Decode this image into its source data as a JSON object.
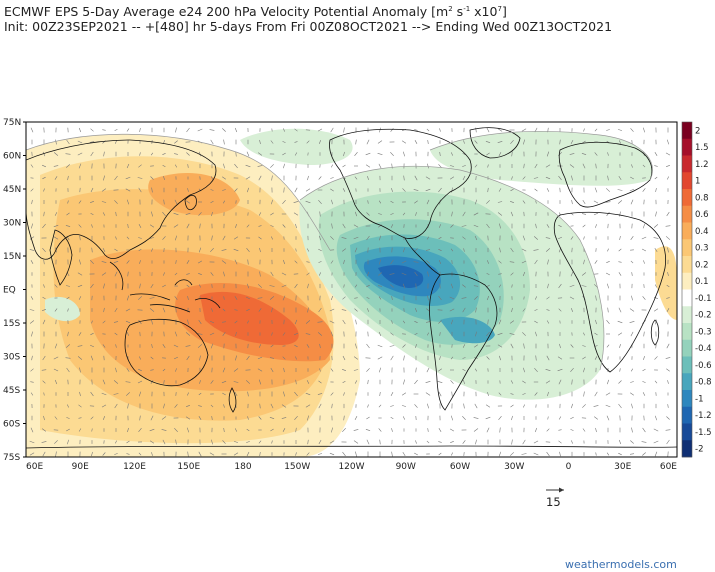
{
  "header": {
    "title_line1_prefix": "ECMWF EPS 5-Day Average e24 200 hPa Velocity Potential Anomaly [m",
    "title_unit_exp1": "2",
    "title_unit_mid": " s",
    "title_unit_exp2": "-1",
    "title_unit_x": " x10",
    "title_unit_exp3": "7",
    "title_line1_suffix": "]",
    "title_line2": "Init: 00Z23SEP2021 -- +[480] hr   5-days From Fri 00Z08OCT2021 --> Ending Wed 00Z13OCT2021"
  },
  "map": {
    "lat_labels": [
      "75N",
      "60N",
      "45N",
      "30N",
      "15N",
      "EQ",
      "15S",
      "30S",
      "45S",
      "60S",
      "75S"
    ],
    "lon_labels": [
      "60E",
      "90E",
      "120E",
      "150E",
      "180",
      "150W",
      "120W",
      "90W",
      "60W",
      "30W",
      "0",
      "30E",
      "60E"
    ]
  },
  "colorbar": {
    "levels": [
      "2",
      "1.5",
      "1.2",
      "1",
      "0.8",
      "0.6",
      "0.4",
      "0.3",
      "0.2",
      "0.1",
      "-0.1",
      "-0.2",
      "-0.3",
      "-0.4",
      "-0.6",
      "-0.8",
      "-1",
      "-1.2",
      "-1.5",
      "-2"
    ],
    "colors": [
      "#7a0020",
      "#a50f2a",
      "#c9292e",
      "#e2472f",
      "#ef6a36",
      "#f58d45",
      "#f9ad5a",
      "#fbc774",
      "#fcdb93",
      "#fdeec0",
      "#ffffff",
      "#d8efd6",
      "#b8e2c4",
      "#94d2bc",
      "#6cbfba",
      "#48a6bd",
      "#2e87be",
      "#1f67b2",
      "#174a98",
      "#0f2f74"
    ]
  },
  "wind_reference": {
    "value": "15"
  },
  "watermark": "weathermodels.com"
}
